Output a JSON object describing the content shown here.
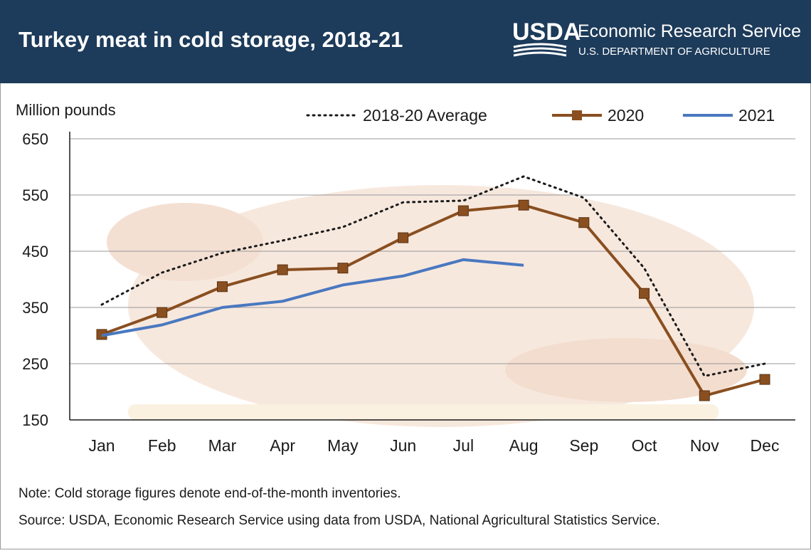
{
  "header": {
    "logo": "USDA",
    "agency": "Economic Research Service",
    "department": "U.S. DEPARTMENT OF AGRICULTURE"
  },
  "chart_data": {
    "type": "line",
    "title": "Turkey meat in cold storage, 2018-21",
    "y_label": "Million pounds",
    "categories": [
      "Jan",
      "Feb",
      "Mar",
      "Apr",
      "May",
      "Jun",
      "Jul",
      "Aug",
      "Sep",
      "Oct",
      "Nov",
      "Dec"
    ],
    "series": [
      {
        "name": "2018-20 Average",
        "color": "#1a1a1a",
        "style": "dotted",
        "values": [
          355,
          412,
          447,
          469,
          493,
          537,
          540,
          583,
          545,
          420,
          228,
          250
        ]
      },
      {
        "name": "2020",
        "color": "#8a4f20",
        "style": "solid",
        "marker": "square",
        "values": [
          302,
          341,
          387,
          417,
          420,
          474,
          522,
          532,
          501,
          375,
          193,
          222
        ]
      },
      {
        "name": "2021",
        "color": "#4a78c0",
        "style": "solid",
        "values": [
          300,
          319,
          350,
          361,
          390,
          406,
          435,
          425,
          null,
          null,
          null,
          null
        ]
      }
    ],
    "ylim": [
      150,
      650
    ],
    "yticks": [
      150,
      250,
      350,
      450,
      550,
      650
    ],
    "grid": true,
    "legend": "top",
    "note": "Note: Cold storage figures denote end-of-the-month inventories.",
    "source": "Source: USDA, Economic Research Service using data from USDA, National Agricultural Statistics Service."
  }
}
